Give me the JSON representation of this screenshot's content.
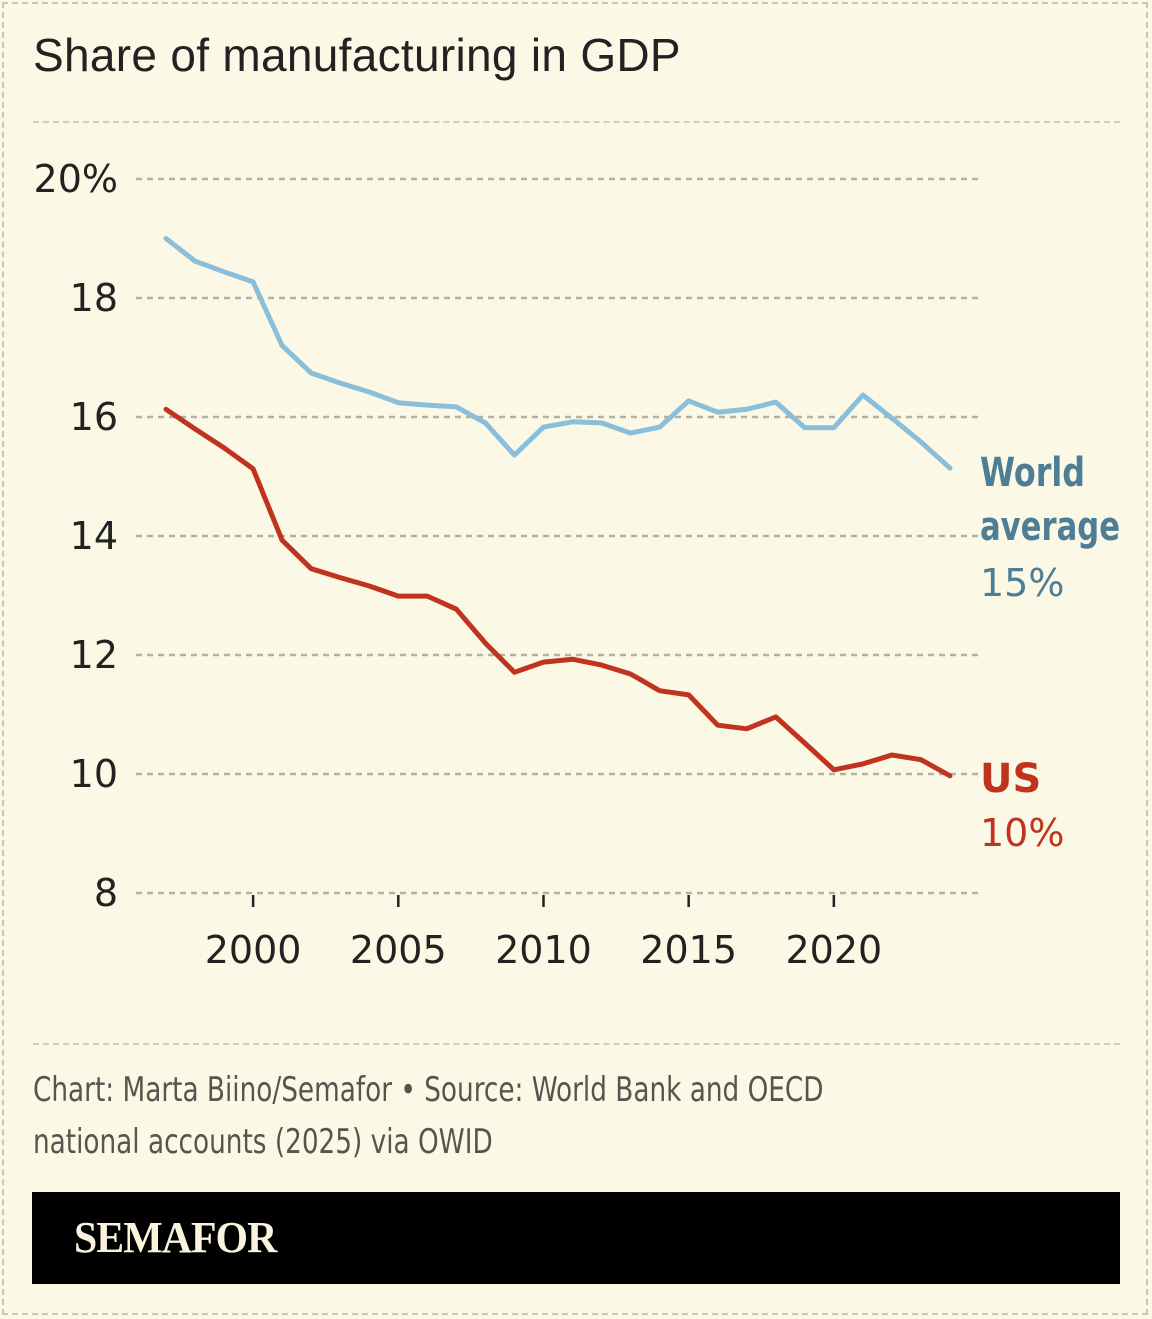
{
  "title": "Share of manufacturing in GDP",
  "source_line1": "Chart: Marta Biino/Semafor • Source: World Bank and OECD",
  "source_line2": "national accounts (2025) via OWID",
  "brand": "SEMAFOR",
  "colors": {
    "world": "#8bbfd9",
    "world_label": "#4e7d96",
    "us": "#c0341f",
    "grid": "#b3b1a4",
    "text": "#222222"
  },
  "chart_data": {
    "type": "line",
    "title": "Share of manufacturing in GDP",
    "xlabel": "",
    "ylabel": "",
    "x": [
      1997,
      1998,
      1999,
      2000,
      2001,
      2002,
      2003,
      2004,
      2005,
      2006,
      2007,
      2008,
      2009,
      2010,
      2011,
      2012,
      2013,
      2014,
      2015,
      2016,
      2017,
      2018,
      2019,
      2020,
      2021,
      2022,
      2023,
      2024
    ],
    "series": [
      {
        "name": "World average",
        "label_lines": [
          "World",
          "average"
        ],
        "end_label": "15%",
        "values": [
          19.0,
          18.62,
          18.44,
          18.27,
          17.2,
          16.74,
          16.57,
          16.42,
          16.24,
          16.2,
          16.17,
          15.9,
          15.36,
          15.83,
          15.92,
          15.9,
          15.73,
          15.83,
          16.27,
          16.08,
          16.13,
          16.25,
          15.82,
          15.82,
          16.37,
          15.98,
          15.58,
          15.14
        ]
      },
      {
        "name": "US",
        "label_lines": [
          "US"
        ],
        "end_label": "10%",
        "values": [
          16.13,
          15.8,
          15.48,
          15.13,
          13.93,
          13.45,
          13.3,
          13.16,
          12.99,
          12.99,
          12.77,
          12.2,
          11.71,
          11.88,
          11.93,
          11.83,
          11.68,
          11.4,
          11.33,
          10.82,
          10.76,
          10.96,
          10.52,
          10.07,
          10.17,
          10.32,
          10.24,
          9.97
        ]
      }
    ],
    "ylim": [
      8,
      20
    ],
    "xlim": [
      1997,
      2024
    ],
    "yticks": [
      8,
      10,
      12,
      14,
      16,
      18,
      20
    ],
    "ytick_labels": [
      "8",
      "10",
      "12",
      "14",
      "16",
      "18",
      "20%"
    ],
    "xticks": [
      2000,
      2005,
      2010,
      2015,
      2020
    ],
    "xtick_labels": [
      "2000",
      "2005",
      "2010",
      "2015",
      "2020"
    ],
    "grid": "horizontal dashed",
    "legend": "direct labels at right end of lines"
  }
}
